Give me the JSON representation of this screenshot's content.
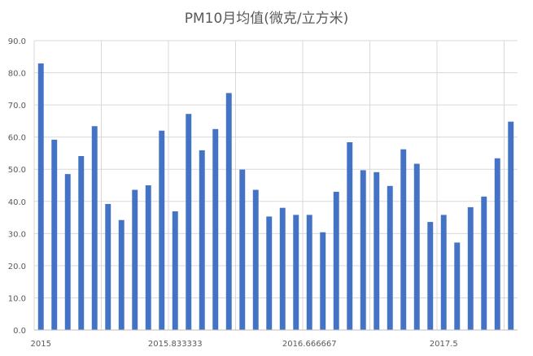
{
  "chart_data": {
    "type": "bar",
    "title": "PM10月均值(微克/立方米)",
    "xlabel": "",
    "ylabel": "",
    "ylim": [
      0,
      90
    ],
    "yticks": [
      "0.0",
      "10.0",
      "20.0",
      "30.0",
      "40.0",
      "50.0",
      "60.0",
      "70.0",
      "80.0",
      "90.0"
    ],
    "xticks": [
      "2015",
      "2015.833333",
      "2016.666667",
      "2017.5"
    ],
    "grid": true,
    "bar_color": "#4472c4",
    "values": [
      82.9,
      59.2,
      48.5,
      54.1,
      63.4,
      39.2,
      34.2,
      43.6,
      45.0,
      62.0,
      36.9,
      67.2,
      55.9,
      62.5,
      73.7,
      49.9,
      43.6,
      35.3,
      38.0,
      35.8,
      35.8,
      30.4,
      43.0,
      58.4,
      49.7,
      49.1,
      44.8,
      56.2,
      51.7,
      33.6,
      35.8,
      27.2,
      38.2,
      41.5,
      53.4,
      64.8
    ]
  }
}
